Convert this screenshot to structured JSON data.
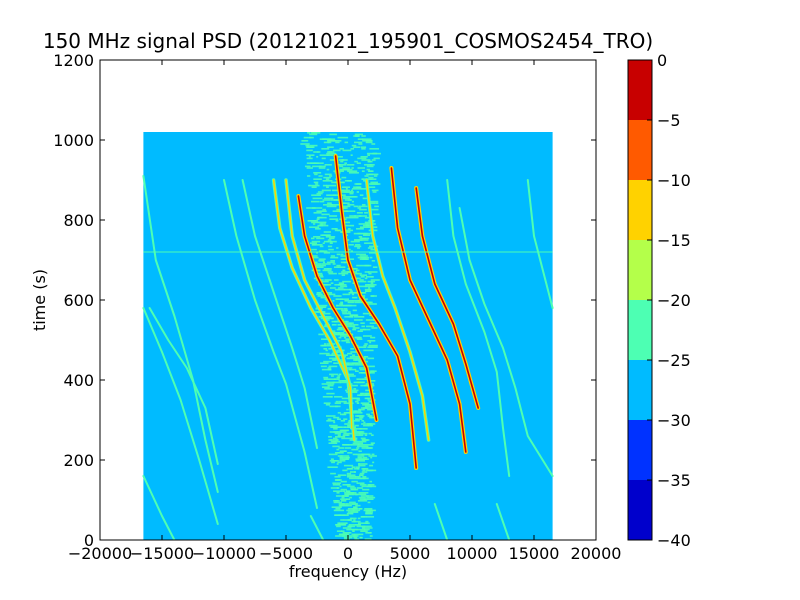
{
  "chart_data": {
    "type": "heatmap",
    "title": "150 MHz signal PSD (20121021_195901_COSMOS2454_TRO)",
    "xlabel": "frequency (Hz)",
    "ylabel": "time (s)",
    "xlim": [
      -20000,
      20000
    ],
    "ylim": [
      0,
      1200
    ],
    "xticks": [
      -20000,
      -15000,
      -10000,
      -5000,
      0,
      5000,
      10000,
      15000,
      20000
    ],
    "yticks": [
      0,
      200,
      400,
      600,
      800,
      1000,
      1200
    ],
    "x_tick_labels": [
      "−20000",
      "−15000",
      "−10000",
      "−5000",
      "0",
      "5000",
      "10000",
      "15000",
      "20000"
    ],
    "y_tick_labels": [
      "0",
      "200",
      "400",
      "600",
      "800",
      "1000",
      "1200"
    ],
    "data_extent": {
      "x": [
        -16500,
        16500
      ],
      "y": [
        0,
        1020
      ]
    },
    "background_level": -27.5,
    "colorbar": {
      "levels": [
        -40,
        -35,
        -30,
        -25,
        -20,
        -15,
        -10,
        -5,
        0
      ],
      "tick_labels": [
        "−40",
        "−35",
        "−30",
        "−25",
        "−20",
        "−15",
        "−10",
        "−5",
        "0"
      ],
      "colors": [
        "#0000cc",
        "#0032ff",
        "#00bbff",
        "#4dffb3",
        "#b4ff4a",
        "#ffd200",
        "#ff5a00",
        "#c80000"
      ]
    },
    "horizontal_line": {
      "time": 720,
      "level": -22.5
    },
    "central_band": {
      "freq_center": 0,
      "freq_halfwidth": 3000,
      "level": -22.5
    },
    "traces": [
      {
        "level": -22.5,
        "points": [
          [
            -16500,
            910
          ],
          [
            -15500,
            700
          ],
          [
            -14000,
            560
          ],
          [
            -12500,
            400
          ],
          [
            -11500,
            250
          ],
          [
            -10500,
            120
          ]
        ]
      },
      {
        "level": -22.5,
        "points": [
          [
            -16500,
            580
          ],
          [
            -15000,
            470
          ],
          [
            -13500,
            350
          ],
          [
            -12000,
            200
          ],
          [
            -10500,
            40
          ]
        ]
      },
      {
        "level": -22.5,
        "points": [
          [
            -16500,
            160
          ],
          [
            -15000,
            60
          ],
          [
            -14000,
            0
          ]
        ]
      },
      {
        "level": -22.5,
        "points": [
          [
            -16000,
            580
          ],
          [
            -14500,
            500
          ],
          [
            -13000,
            430
          ],
          [
            -11500,
            330
          ],
          [
            -10500,
            190
          ]
        ]
      },
      {
        "level": -22.5,
        "points": [
          [
            -10000,
            900
          ],
          [
            -9000,
            760
          ],
          [
            -7500,
            600
          ],
          [
            -6000,
            470
          ],
          [
            -5000,
            390
          ],
          [
            -3500,
            220
          ],
          [
            -2500,
            80
          ]
        ]
      },
      {
        "level": -22.5,
        "points": [
          [
            -8500,
            900
          ],
          [
            -7500,
            760
          ],
          [
            -6000,
            620
          ],
          [
            -4500,
            480
          ],
          [
            -3500,
            380
          ],
          [
            -2500,
            230
          ]
        ]
      },
      {
        "level": -12.5,
        "points": [
          [
            -6000,
            900
          ],
          [
            -5500,
            780
          ],
          [
            -4500,
            680
          ],
          [
            -3000,
            580
          ],
          [
            -1500,
            500
          ],
          [
            0,
            400
          ],
          [
            500,
            250
          ]
        ]
      },
      {
        "level": -12.5,
        "points": [
          [
            -5000,
            900
          ],
          [
            -4500,
            760
          ],
          [
            -3500,
            650
          ],
          [
            -2000,
            560
          ],
          [
            -500,
            470
          ],
          [
            200,
            380
          ],
          [
            300,
            280
          ]
        ]
      },
      {
        "level": -2.5,
        "points": [
          [
            -4000,
            860
          ],
          [
            -3500,
            760
          ],
          [
            -2500,
            660
          ],
          [
            -1200,
            580
          ],
          [
            200,
            510
          ],
          [
            1500,
            430
          ],
          [
            2300,
            300
          ]
        ]
      },
      {
        "level": -2.5,
        "points": [
          [
            -1000,
            960
          ],
          [
            -500,
            820
          ],
          [
            0,
            700
          ],
          [
            1000,
            610
          ],
          [
            2500,
            540
          ],
          [
            4000,
            460
          ],
          [
            5000,
            340
          ],
          [
            5500,
            180
          ]
        ]
      },
      {
        "level": -12.5,
        "points": [
          [
            1500,
            900
          ],
          [
            2000,
            760
          ],
          [
            2800,
            660
          ],
          [
            3800,
            580
          ],
          [
            5000,
            470
          ],
          [
            6000,
            360
          ],
          [
            6500,
            250
          ]
        ]
      },
      {
        "level": -2.5,
        "points": [
          [
            3500,
            930
          ],
          [
            4000,
            780
          ],
          [
            5000,
            650
          ],
          [
            6500,
            550
          ],
          [
            8000,
            450
          ],
          [
            9000,
            340
          ],
          [
            9500,
            220
          ]
        ]
      },
      {
        "level": -2.5,
        "points": [
          [
            5500,
            880
          ],
          [
            6000,
            760
          ],
          [
            7000,
            640
          ],
          [
            8500,
            540
          ],
          [
            9500,
            440
          ],
          [
            10500,
            330
          ]
        ]
      },
      {
        "level": -22.5,
        "points": [
          [
            8000,
            900
          ],
          [
            8500,
            760
          ],
          [
            9500,
            640
          ],
          [
            11000,
            520
          ],
          [
            12000,
            420
          ],
          [
            12500,
            280
          ],
          [
            13000,
            160
          ]
        ]
      },
      {
        "level": -22.5,
        "points": [
          [
            9000,
            830
          ],
          [
            9800,
            700
          ],
          [
            11000,
            590
          ],
          [
            12500,
            480
          ],
          [
            13500,
            380
          ],
          [
            14500,
            260
          ],
          [
            16500,
            160
          ]
        ]
      },
      {
        "level": -22.5,
        "points": [
          [
            14500,
            900
          ],
          [
            15000,
            760
          ],
          [
            16000,
            640
          ],
          [
            16500,
            580
          ]
        ]
      },
      {
        "level": -22.5,
        "points": [
          [
            -3000,
            60
          ],
          [
            -2000,
            0
          ]
        ]
      },
      {
        "level": -22.5,
        "points": [
          [
            7000,
            90
          ],
          [
            8000,
            0
          ]
        ]
      },
      {
        "level": -22.5,
        "points": [
          [
            12000,
            90
          ],
          [
            13000,
            0
          ]
        ]
      }
    ]
  }
}
